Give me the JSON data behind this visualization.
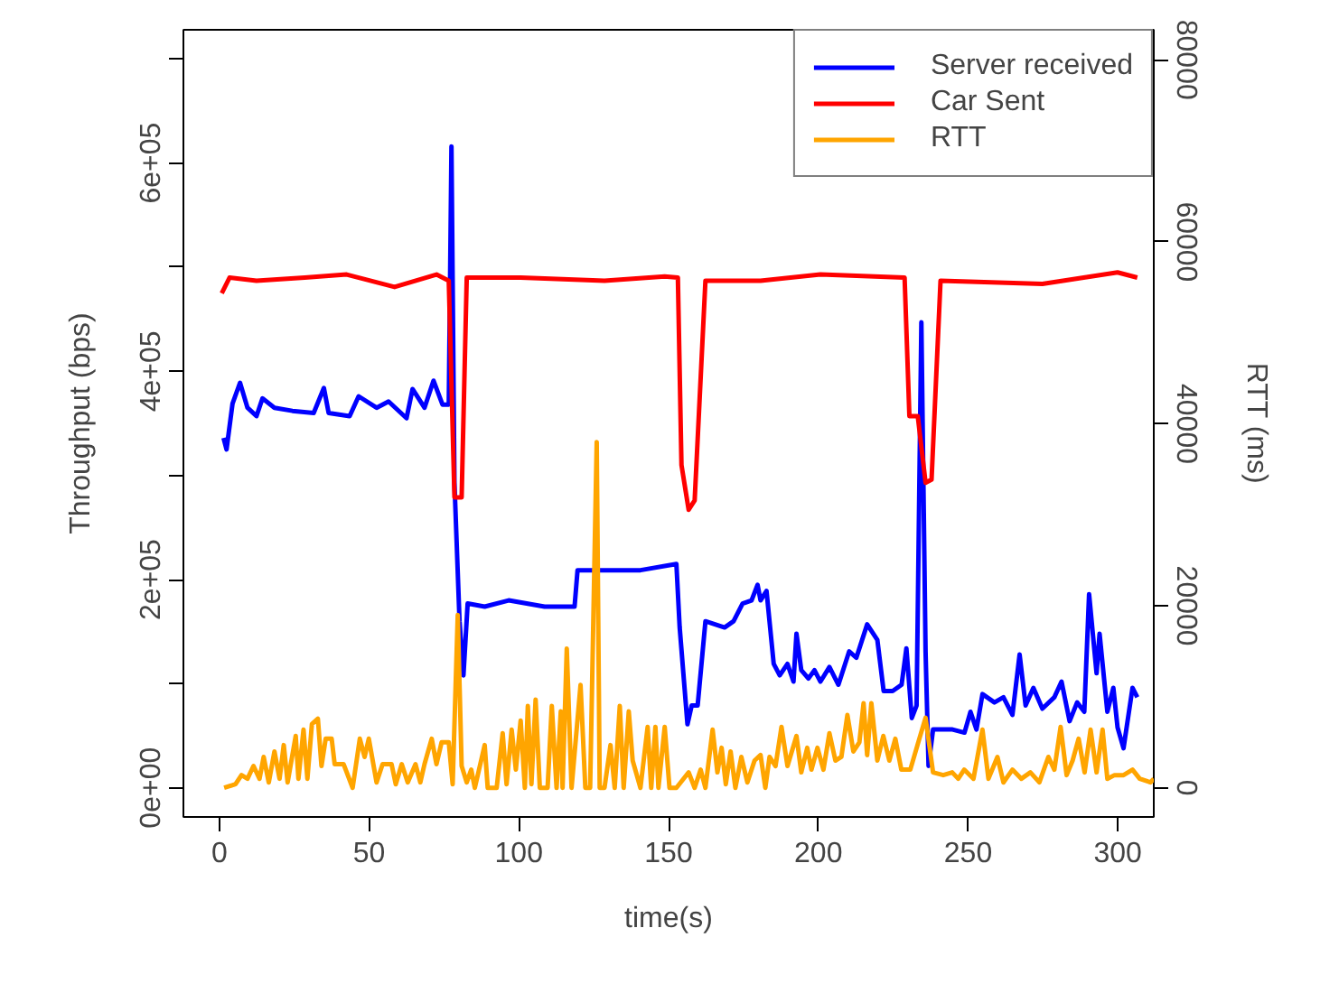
{
  "chart_data": {
    "type": "line",
    "xlabel": "time(s)",
    "ylabel": "Throughput (bps)",
    "y2label": "RTT (ms)",
    "legend": "top right",
    "xlim": [
      -12,
      312
    ],
    "xticks": [
      0,
      50,
      100,
      150,
      200,
      250,
      300
    ],
    "ylim": [
      -28000,
      728000
    ],
    "yticks": [
      {
        "value": 0,
        "label": "0e+00"
      },
      {
        "value": 100000,
        "label": null
      },
      {
        "value": 200000,
        "label": "2e+05"
      },
      {
        "value": 300000,
        "label": null
      },
      {
        "value": 400000,
        "label": "4e+05"
      },
      {
        "value": 500000,
        "label": null
      },
      {
        "value": 600000,
        "label": "6e+05"
      },
      {
        "value": 700000,
        "label": null
      }
    ],
    "y2lim": [
      -3200,
      83300
    ],
    "y2ticks": [
      0,
      20000,
      40000,
      60000,
      80000
    ],
    "series": [
      {
        "name": "Server received",
        "color": "#0000ff",
        "x": [
          1.4,
          2.4,
          4.4,
          6.9,
          9.4,
          12.4,
          14.4,
          18.4,
          24.4,
          31.5,
          34.9,
          36.5,
          43.5,
          46.5,
          52.5,
          56.5,
          62.5,
          64.5,
          68.5,
          71.5,
          74.5,
          76.6,
          77.5,
          78.5,
          80.2,
          81.5,
          82.9,
          88.6,
          96.6,
          108.6,
          118.6,
          119.6,
          128.6,
          140.6,
          152.6,
          153.7,
          156.3,
          157.7,
          159.7,
          162.3,
          168.7,
          171.7,
          174.7,
          177.7,
          179.7,
          180.7,
          182.7,
          185.1,
          187.1,
          189.7,
          191.7,
          192.7,
          194.3,
          196.7,
          198.7,
          200.7,
          203.7,
          206.7,
          210.3,
          212.7,
          216.3,
          219.7,
          221.8,
          224.8,
          227.8,
          229.4,
          231.2,
          232.8,
          234.4,
          235.8,
          236.8,
          238.3,
          244.8,
          248.8,
          250.8,
          252.8,
          254.8,
          258.8,
          261.8,
          264.8,
          267.2,
          269.2,
          271.8,
          274.8,
          278.8,
          281.2,
          283.9,
          286.4,
          288.8,
          290.4,
          292.9,
          293.9,
          296.5,
          298.5,
          299.9,
          301.9,
          304.9,
          306.5
        ],
        "values": [
          336000,
          325000,
          369000,
          389000,
          365000,
          357000,
          374000,
          365000,
          362000,
          360000,
          384000,
          360000,
          357000,
          376000,
          365000,
          371000,
          355000,
          383000,
          365000,
          391000,
          368000,
          368000,
          616000,
          293000,
          160000,
          108000,
          177000,
          174000,
          180000,
          174000,
          174000,
          209000,
          209000,
          209000,
          215000,
          154000,
          61000,
          79000,
          79000,
          160000,
          154000,
          160000,
          177000,
          180000,
          195000,
          180000,
          189000,
          119000,
          108000,
          119000,
          102000,
          148000,
          113000,
          105000,
          113000,
          102000,
          116000,
          99000,
          131000,
          125000,
          157000,
          142000,
          93000,
          93000,
          99000,
          134000,
          67000,
          79000,
          447000,
          131000,
          21000,
          56000,
          56000,
          53000,
          73000,
          56000,
          90000,
          82000,
          87000,
          70000,
          128000,
          79000,
          96000,
          76000,
          87000,
          102000,
          64000,
          82000,
          73000,
          186000,
          110000,
          148000,
          73000,
          96000,
          58000,
          38000,
          96000,
          87000
        ]
      },
      {
        "name": "Car Sent",
        "color": "#ff0000",
        "x": [
          0.8,
          3.4,
          12.4,
          28.5,
          42.5,
          58.5,
          72.5,
          76.6,
          78.5,
          80.9,
          82.6,
          100.6,
          128.6,
          148.7,
          153.1,
          154.3,
          156.7,
          158.7,
          162.3,
          180.7,
          200.7,
          228.8,
          230.4,
          233.2,
          235.8,
          237.8,
          240.8,
          274.8,
          299.9,
          306.5
        ],
        "values": [
          475000,
          490000,
          487000,
          490000,
          493000,
          481000,
          493000,
          487000,
          279000,
          279000,
          490000,
          490000,
          487000,
          491000,
          490000,
          310000,
          267000,
          276000,
          487000,
          487000,
          493000,
          490000,
          357000,
          357000,
          293000,
          296000,
          487000,
          484000,
          495000,
          490000
        ]
      },
      {
        "name": "RTT",
        "color": "#ffa500",
        "axis": "y2",
        "x": [
          1.6,
          5.4,
          7.4,
          9.4,
          11.4,
          13.4,
          14.8,
          16.5,
          18.4,
          20.1,
          21.5,
          22.8,
          25.5,
          26.4,
          28.1,
          29.4,
          30.9,
          32.9,
          34.1,
          35.5,
          37.5,
          38.5,
          41.5,
          44.5,
          46.9,
          48.5,
          49.9,
          52.5,
          54.5,
          57.5,
          58.9,
          60.9,
          62.9,
          65.5,
          67.1,
          68.5,
          70.9,
          72.5,
          74.2,
          76.6,
          77.9,
          79.6,
          80.9,
          82.6,
          84.1,
          85.3,
          88.6,
          89.6,
          92.6,
          94.6,
          95.9,
          97.6,
          99.0,
          100.6,
          102.0,
          103.0,
          104.2,
          105.6,
          107.0,
          109.6,
          111.0,
          112.6,
          114.0,
          114.6,
          116.0,
          117.6,
          120.6,
          122.2,
          123.8,
          126.0,
          127.0,
          128.6,
          130.6,
          132.0,
          133.7,
          135.0,
          136.7,
          138.0,
          140.6,
          143.0,
          144.2,
          145.6,
          146.6,
          148.7,
          150.3,
          152.6,
          156.7,
          158.7,
          160.7,
          162.3,
          164.7,
          166.3,
          167.7,
          169.1,
          170.7,
          172.3,
          174.3,
          176.3,
          178.7,
          180.7,
          182.3,
          183.7,
          185.7,
          187.7,
          189.7,
          192.7,
          194.3,
          196.3,
          197.7,
          199.7,
          201.7,
          203.7,
          205.7,
          207.7,
          209.7,
          211.7,
          213.7,
          215.1,
          216.3,
          217.7,
          219.7,
          221.7,
          223.7,
          225.7,
          227.7,
          230.7,
          233.1,
          235.8,
          238.3,
          241.7,
          244.7,
          246.7,
          248.7,
          251.8,
          254.8,
          256.8,
          259.8,
          261.8,
          264.8,
          267.8,
          270.8,
          273.8,
          276.8,
          278.8,
          280.9,
          282.9,
          284.9,
          286.9,
          288.9,
          290.9,
          292.9,
          294.9,
          296.5,
          298.9,
          301.9,
          304.9,
          307.3,
          310.9,
          312
        ],
        "values": [
          0,
          400,
          1400,
          1000,
          2400,
          1000,
          3400,
          600,
          4000,
          1000,
          4700,
          600,
          5700,
          1000,
          6400,
          1000,
          7000,
          7600,
          2400,
          5400,
          5400,
          2600,
          2600,
          0,
          5400,
          3400,
          5400,
          600,
          2600,
          2600,
          400,
          2600,
          600,
          2600,
          600,
          2600,
          5400,
          2600,
          5000,
          5000,
          400,
          19000,
          2400,
          600,
          2000,
          0,
          4700,
          0,
          0,
          6000,
          400,
          6400,
          2000,
          7400,
          0,
          9000,
          400,
          9700,
          0,
          0,
          9000,
          0,
          8400,
          0,
          15300,
          0,
          11300,
          0,
          0,
          38000,
          0,
          0,
          4700,
          0,
          9000,
          0,
          8400,
          3000,
          0,
          6700,
          0,
          6700,
          0,
          6700,
          0,
          0,
          1700,
          0,
          2000,
          0,
          6400,
          1700,
          4400,
          400,
          4000,
          0,
          3400,
          600,
          3000,
          3600,
          0,
          3400,
          2400,
          6700,
          2400,
          5700,
          1700,
          4400,
          2000,
          4400,
          2000,
          6000,
          3000,
          3400,
          8000,
          4000,
          5000,
          9300,
          3600,
          9300,
          3000,
          5700,
          3000,
          5400,
          2000,
          2000,
          4700,
          7700,
          1700,
          1400,
          1700,
          1000,
          2000,
          1000,
          6400,
          1000,
          3400,
          600,
          2000,
          1000,
          1700,
          600,
          3400,
          2000,
          6700,
          1400,
          3000,
          5400,
          1700,
          6400,
          1700,
          6400,
          1000,
          1400,
          1400,
          2000,
          1000,
          600,
          1000
        ]
      }
    ]
  }
}
